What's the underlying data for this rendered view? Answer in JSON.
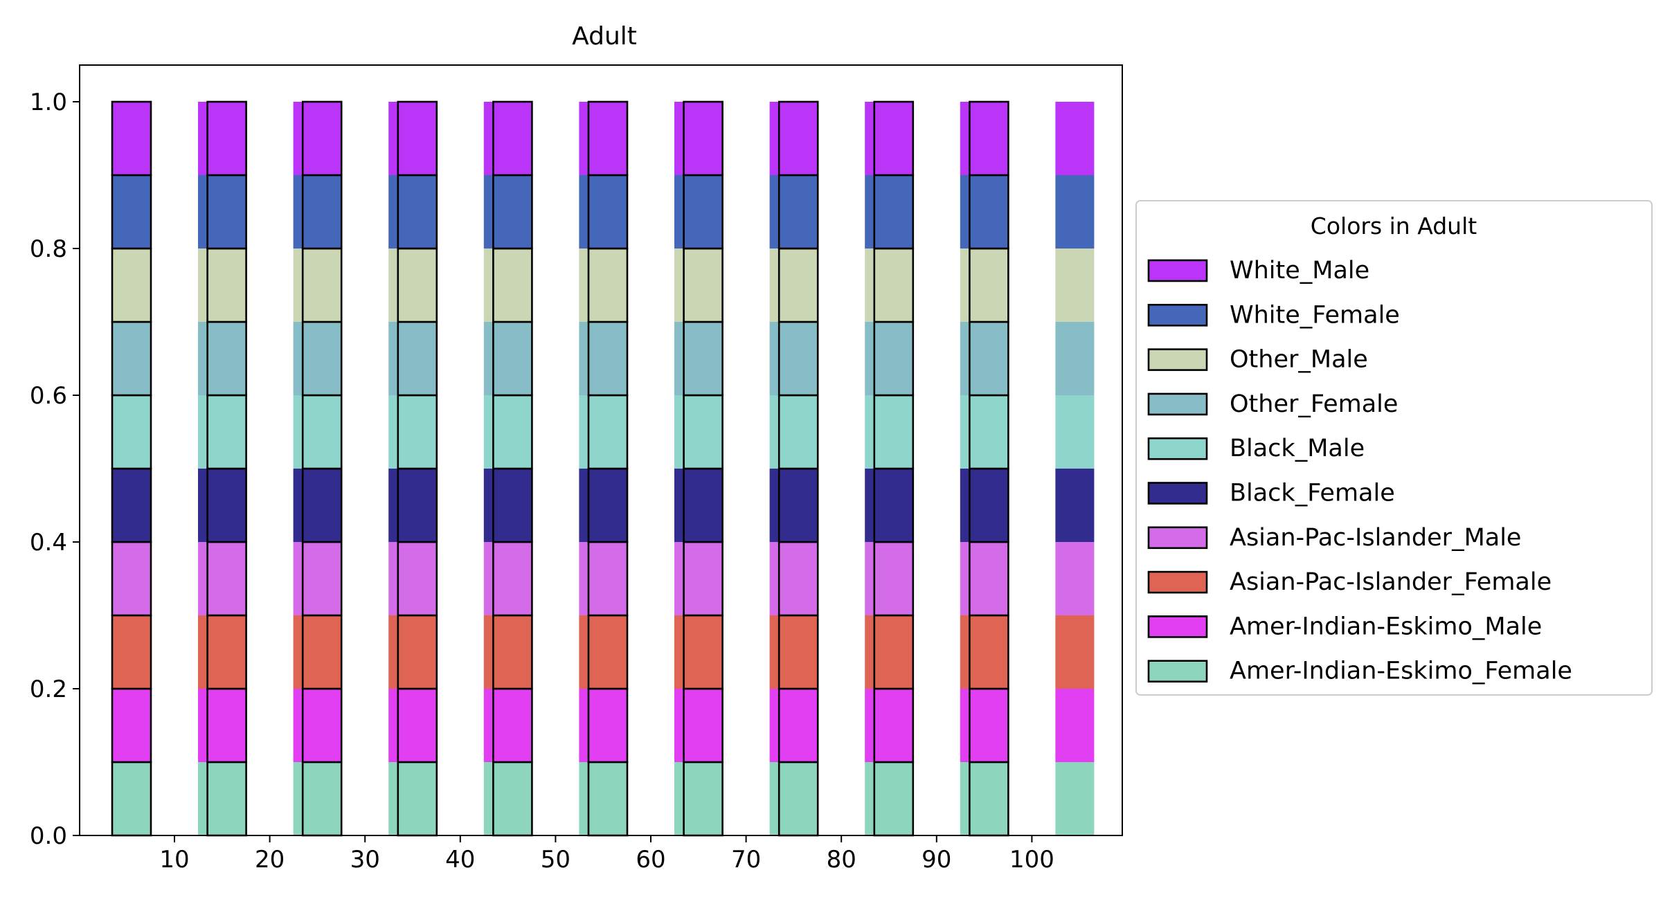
{
  "chart_data": {
    "type": "bar",
    "stacked": true,
    "title": "Adult",
    "xlabel": "",
    "ylabel": "",
    "ylim": [
      0,
      1.05
    ],
    "xticks": [
      "10",
      "20",
      "30",
      "40",
      "50",
      "60",
      "70",
      "80",
      "90",
      "100"
    ],
    "yticks": [
      "0.0",
      "0.2",
      "0.4",
      "0.6",
      "0.8",
      "1.0"
    ],
    "grid": false,
    "legend": {
      "title": "Colors in Adult",
      "placement": "outside-right"
    },
    "groups": [
      {
        "name": "",
        "outlined": true
      },
      {
        "name": "",
        "outlined": false
      }
    ],
    "series": [
      {
        "name": "Amer-Indian-Eskimo_Female",
        "color": "#8dd5bd",
        "values": [
          0.1,
          0.1,
          0.1,
          0.1,
          0.1,
          0.1,
          0.1,
          0.1,
          0.1,
          0.1
        ]
      },
      {
        "name": "Amer-Indian-Eskimo_Male",
        "color": "#e23ff2",
        "values": [
          0.1,
          0.1,
          0.1,
          0.1,
          0.1,
          0.1,
          0.1,
          0.1,
          0.1,
          0.1
        ]
      },
      {
        "name": "Asian-Pac-Islander_Female",
        "color": "#df6453",
        "values": [
          0.1,
          0.1,
          0.1,
          0.1,
          0.1,
          0.1,
          0.1,
          0.1,
          0.1,
          0.1
        ]
      },
      {
        "name": "Asian-Pac-Islander_Male",
        "color": "#d46be8",
        "values": [
          0.1,
          0.1,
          0.1,
          0.1,
          0.1,
          0.1,
          0.1,
          0.1,
          0.1,
          0.1
        ]
      },
      {
        "name": "Black_Female",
        "color": "#322c8f",
        "values": [
          0.1,
          0.1,
          0.1,
          0.1,
          0.1,
          0.1,
          0.1,
          0.1,
          0.1,
          0.1
        ]
      },
      {
        "name": "Black_Male",
        "color": "#8ed6cc",
        "values": [
          0.1,
          0.1,
          0.1,
          0.1,
          0.1,
          0.1,
          0.1,
          0.1,
          0.1,
          0.1
        ]
      },
      {
        "name": "Other_Female",
        "color": "#86bdc7",
        "values": [
          0.1,
          0.1,
          0.1,
          0.1,
          0.1,
          0.1,
          0.1,
          0.1,
          0.1,
          0.1
        ]
      },
      {
        "name": "Other_Male",
        "color": "#cbd6b4",
        "values": [
          0.1,
          0.1,
          0.1,
          0.1,
          0.1,
          0.1,
          0.1,
          0.1,
          0.1,
          0.1
        ]
      },
      {
        "name": "White_Female",
        "color": "#4567b9",
        "values": [
          0.1,
          0.1,
          0.1,
          0.1,
          0.1,
          0.1,
          0.1,
          0.1,
          0.1,
          0.1
        ]
      },
      {
        "name": "White_Male",
        "color": "#bb35f9",
        "values": [
          0.1,
          0.1,
          0.1,
          0.1,
          0.1,
          0.1,
          0.1,
          0.1,
          0.1,
          0.1
        ]
      }
    ]
  }
}
